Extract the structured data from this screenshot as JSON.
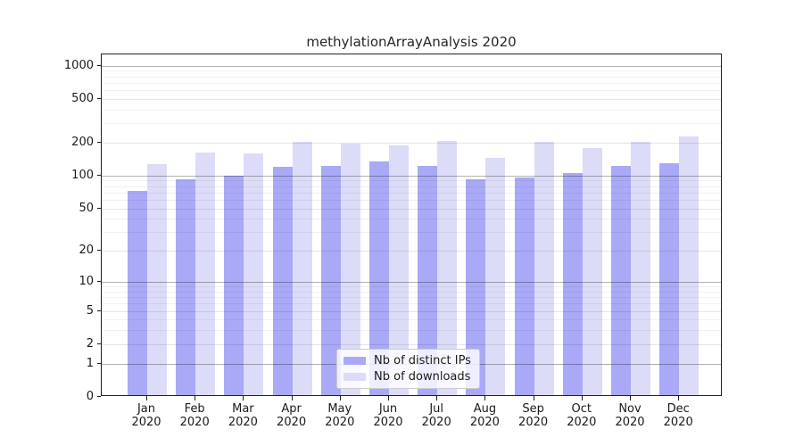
{
  "chart_data": {
    "type": "bar",
    "title": "methylationArrayAnalysis 2020",
    "year_label": "2020",
    "months": [
      "Jan",
      "Feb",
      "Mar",
      "Apr",
      "May",
      "Jun",
      "Jul",
      "Aug",
      "Sep",
      "Oct",
      "Nov",
      "Dec"
    ],
    "categories": [
      "Jan 2020",
      "Feb 2020",
      "Mar 2020",
      "Apr 2020",
      "May 2020",
      "Jun 2020",
      "Jul 2020",
      "Aug 2020",
      "Sep 2020",
      "Oct 2020",
      "Nov 2020",
      "Dec 2020"
    ],
    "series": [
      {
        "name": "Nb of distinct IPs",
        "color": "#a9a9f7",
        "values": [
          70,
          90,
          97,
          116,
          119,
          129,
          118,
          89,
          93,
          101,
          119,
          125
        ]
      },
      {
        "name": "Nb of downloads",
        "color": "#dcdcf8",
        "values": [
          122,
          156,
          153,
          197,
          190,
          183,
          198,
          140,
          196,
          171,
          196,
          220
        ]
      }
    ],
    "yticks": [
      0,
      1,
      2,
      5,
      10,
      20,
      50,
      100,
      200,
      500,
      1000
    ],
    "decade_gridlines": [
      1,
      10,
      100,
      1000
    ],
    "minor_gridlines": [
      3,
      4,
      6,
      7,
      8,
      9,
      30,
      40,
      60,
      70,
      80,
      90,
      300,
      400,
      600,
      700,
      800,
      900
    ],
    "scale": "log10(value+1)",
    "ylim": [
      0,
      1265
    ],
    "xlabel": "",
    "ylabel": "",
    "grid": "on",
    "legend_position": "bottom-center",
    "colors": {
      "decade_grid": "rgba(0,0,0,0.30)",
      "labeled_grid": "rgba(0,0,0,0.10)",
      "minor_grid": "rgba(0,0,0,0.06)",
      "spine": "#1f1f1f",
      "background": "#ffffff"
    }
  }
}
